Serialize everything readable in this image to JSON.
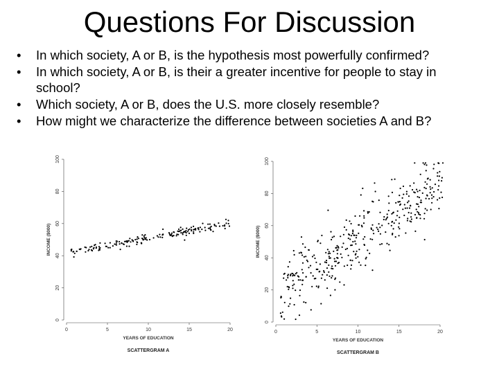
{
  "slide": {
    "title": "Questions For Discussion",
    "bullets": [
      "In which society, A or B, is the hypothesis most powerfully confirmed?",
      "In which society, A or B, is their a greater incentive for people to stay in school?",
      "Which society, A or B, does the U.S. more closely resemble?",
      "How might we characterize the difference between societies A and B?"
    ],
    "bullet_glyph": "•"
  },
  "chart_data": [
    {
      "type": "scatter",
      "title": "SCATTERGRAM A",
      "xlabel": "YEARS OF EDUCATION",
      "ylabel": "INCOME ($000)",
      "xlim": [
        0,
        20
      ],
      "ylim": [
        0,
        100
      ],
      "xticks": [
        0,
        5,
        10,
        15,
        20
      ],
      "yticks": [
        0,
        20,
        40,
        60,
        80,
        100
      ],
      "grid": false,
      "point_color": "#000000",
      "trend": {
        "intercept": 42,
        "slope": 0.9
      },
      "noise": 1.3,
      "n_points": 180,
      "x_range": [
        0.5,
        20
      ]
    },
    {
      "type": "scatter",
      "title": "SCATTERGRAM B",
      "xlabel": "YEARS OF EDUCATION",
      "ylabel": "INCOME ($000)",
      "xlim": [
        0,
        20
      ],
      "ylim": [
        0,
        100
      ],
      "xticks": [
        0,
        5,
        10,
        15,
        20
      ],
      "yticks": [
        0,
        20,
        40,
        60,
        80,
        100
      ],
      "grid": false,
      "point_color": "#000000",
      "trend": {
        "intercept": 18,
        "slope": 3.4
      },
      "noise": 11,
      "n_points": 400,
      "x_range": [
        0.5,
        20.5
      ]
    }
  ]
}
